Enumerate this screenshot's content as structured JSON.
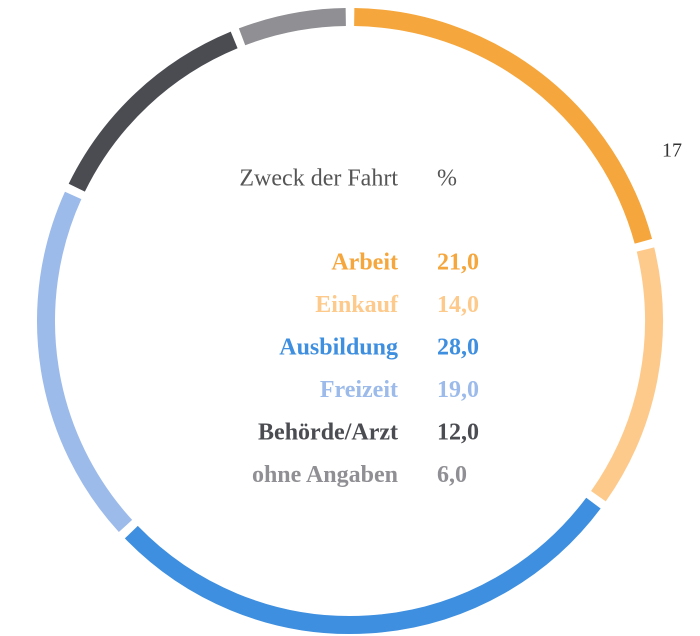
{
  "chart_data": {
    "type": "donut",
    "header": [
      "Zweck der Fahrt",
      "%"
    ],
    "categories": [
      "Arbeit",
      "Einkauf",
      "Ausbildung",
      "Freizeit",
      "Behörde/Arzt",
      "ohne Angaben"
    ],
    "values": [
      21,
      14,
      28,
      19,
      12,
      6
    ],
    "value_labels": [
      "21,0",
      "14,0",
      "28,0",
      "19,0",
      "12,0",
      "6,0"
    ],
    "colors": [
      "#f5a63c",
      "#fdca8c",
      "#3e8fdf",
      "#9cbbea",
      "#4b4c52",
      "#8f8f94"
    ],
    "annotation": "17"
  }
}
